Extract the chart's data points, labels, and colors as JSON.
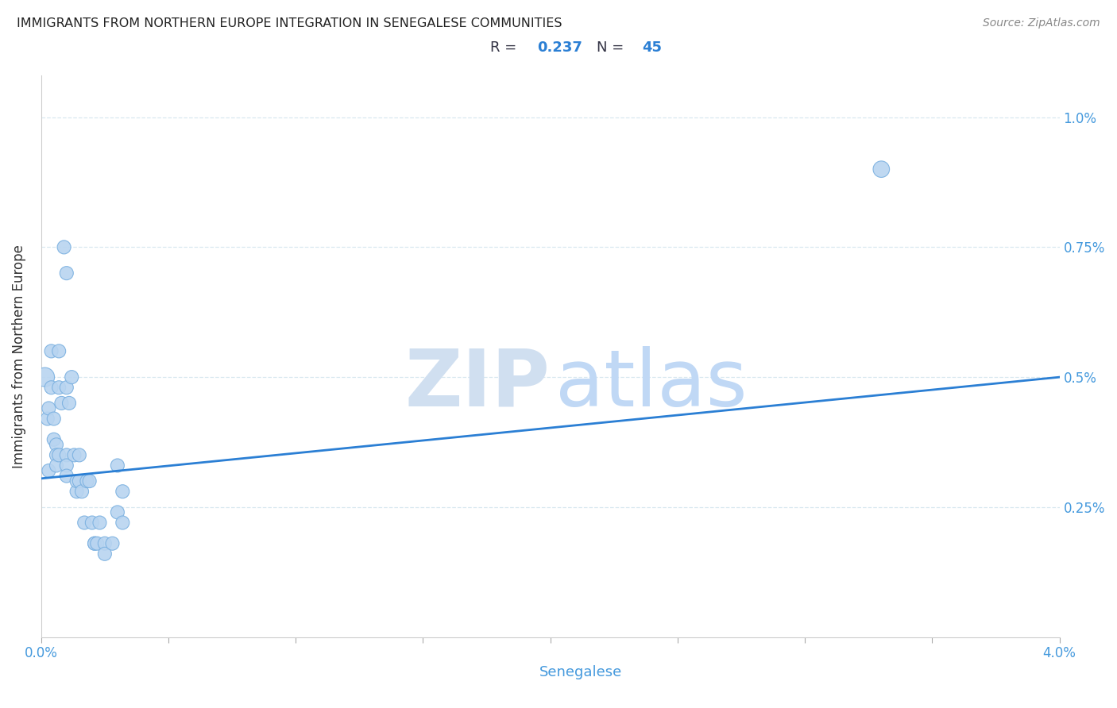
{
  "title": "IMMIGRANTS FROM NORTHERN EUROPE INTEGRATION IN SENEGALESE COMMUNITIES",
  "source": "Source: ZipAtlas.com",
  "xlabel": "Senegalese",
  "ylabel": "Immigrants from Northern Europe",
  "R": 0.237,
  "N": 45,
  "xlim": [
    0.0,
    0.04
  ],
  "ylim": [
    0.0,
    0.0108
  ],
  "xtick_positions": [
    0.0,
    0.005,
    0.01,
    0.015,
    0.02,
    0.025,
    0.03,
    0.035,
    0.04
  ],
  "xtick_labels_show": {
    "0.0": "0.0%",
    "0.04": "4.0%"
  },
  "xtick_minor_positions": [
    0.005,
    0.01,
    0.015,
    0.02,
    0.025,
    0.03,
    0.035
  ],
  "ytick_labels": [
    "0.25%",
    "0.5%",
    "0.75%",
    "1.0%"
  ],
  "ytick_values": [
    0.0025,
    0.005,
    0.0075,
    0.01
  ],
  "scatter_color": "#b8d4f0",
  "scatter_edge_color": "#7ab0e0",
  "line_color": "#2b7fd4",
  "title_color": "#222222",
  "axis_label_color": "#4499dd",
  "ylabel_color": "#333333",
  "watermark_zip_color": "#d0dff0",
  "watermark_atlas_color": "#c0d8f5",
  "grid_color": "#d8e8f0",
  "ann_box_edge": "#aabbcc",
  "points": [
    [
      0.00015,
      0.005
    ],
    [
      0.00025,
      0.0042
    ],
    [
      0.0003,
      0.0044
    ],
    [
      0.0003,
      0.0032
    ],
    [
      0.0004,
      0.0055
    ],
    [
      0.0004,
      0.0048
    ],
    [
      0.0005,
      0.0042
    ],
    [
      0.0005,
      0.0038
    ],
    [
      0.0006,
      0.0037
    ],
    [
      0.0006,
      0.0035
    ],
    [
      0.0006,
      0.0033
    ],
    [
      0.0007,
      0.0055
    ],
    [
      0.0007,
      0.0048
    ],
    [
      0.0007,
      0.0035
    ],
    [
      0.0008,
      0.0045
    ],
    [
      0.0009,
      0.0075
    ],
    [
      0.001,
      0.007
    ],
    [
      0.001,
      0.0048
    ],
    [
      0.001,
      0.0035
    ],
    [
      0.001,
      0.0033
    ],
    [
      0.001,
      0.0031
    ],
    [
      0.0011,
      0.0045
    ],
    [
      0.0012,
      0.005
    ],
    [
      0.0013,
      0.0035
    ],
    [
      0.0014,
      0.0028
    ],
    [
      0.0014,
      0.003
    ],
    [
      0.0015,
      0.0035
    ],
    [
      0.0015,
      0.003
    ],
    [
      0.0016,
      0.0028
    ],
    [
      0.0017,
      0.0022
    ],
    [
      0.0018,
      0.003
    ],
    [
      0.0019,
      0.003
    ],
    [
      0.002,
      0.0022
    ],
    [
      0.0021,
      0.0018
    ],
    [
      0.0021,
      0.0018
    ],
    [
      0.0022,
      0.0018
    ],
    [
      0.0023,
      0.0022
    ],
    [
      0.0025,
      0.0018
    ],
    [
      0.0025,
      0.0016
    ],
    [
      0.0028,
      0.0018
    ],
    [
      0.003,
      0.0033
    ],
    [
      0.003,
      0.0024
    ],
    [
      0.0032,
      0.0028
    ],
    [
      0.0032,
      0.0022
    ],
    [
      0.033,
      0.009
    ]
  ],
  "dot_sizes": [
    300,
    150,
    150,
    150,
    150,
    150,
    150,
    150,
    150,
    150,
    150,
    150,
    150,
    150,
    150,
    150,
    150,
    150,
    150,
    150,
    150,
    150,
    150,
    150,
    150,
    150,
    150,
    150,
    150,
    150,
    150,
    150,
    150,
    150,
    150,
    150,
    150,
    150,
    150,
    150,
    150,
    150,
    150,
    150,
    220
  ],
  "line_x_start": 0.0,
  "line_x_end": 0.04,
  "line_y_start": 0.00305,
  "line_y_end": 0.005,
  "figsize": [
    14.06,
    8.92
  ],
  "dpi": 100
}
